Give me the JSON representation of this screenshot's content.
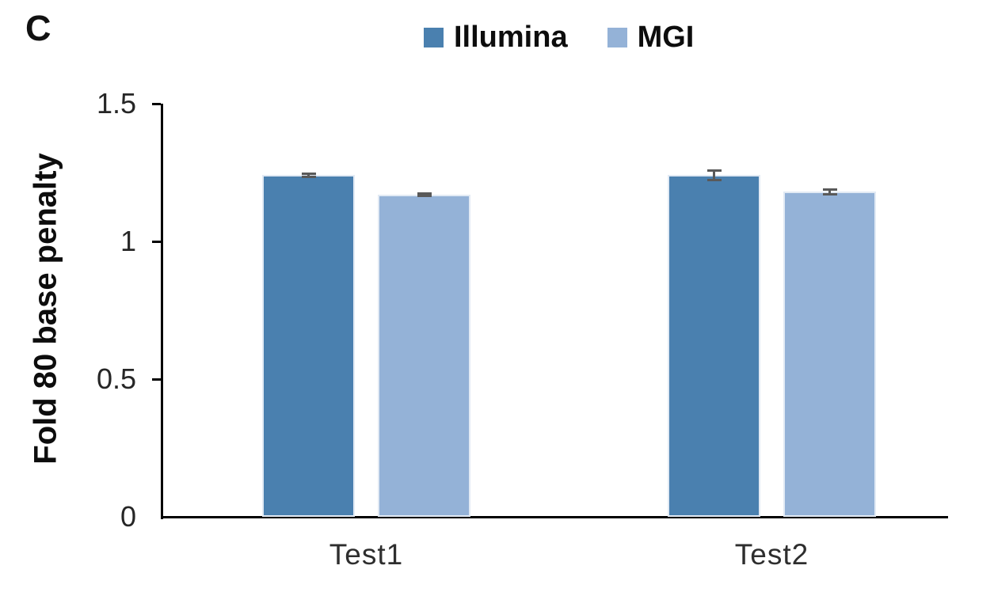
{
  "panel_label": "C",
  "colors": {
    "illumina": "#4A80AF",
    "mgi": "#94B2D7",
    "error_bar": "#595959",
    "axis": "#000000",
    "bar_border": "#e2eaf4",
    "background": "#ffffff"
  },
  "legend": {
    "items": [
      {
        "label": "Illumina",
        "swatch_color": "#4A80AF"
      },
      {
        "label": "MGI",
        "swatch_color": "#94B2D7"
      }
    ],
    "position": "top-center"
  },
  "chart_data": {
    "type": "bar",
    "title": "",
    "xlabel": "",
    "ylabel": "Fold 80 base penalty",
    "categories": [
      "Test1",
      "Test2"
    ],
    "series": [
      {
        "name": "Illumina",
        "color": "#4A80AF",
        "values": [
          1.24,
          1.24
        ],
        "errors": [
          0.005,
          0.017
        ]
      },
      {
        "name": "MGI",
        "color": "#94B2D7",
        "values": [
          1.17,
          1.18
        ],
        "errors": [
          0.005,
          0.009
        ]
      }
    ],
    "ylim": [
      0,
      1.5
    ],
    "yticks": [
      0,
      0.5,
      1,
      1.5
    ],
    "ytick_labels": [
      "0",
      "0.5",
      "1",
      "1.5"
    ],
    "grid": false,
    "error_bars": true,
    "legend_position": "top-center"
  }
}
